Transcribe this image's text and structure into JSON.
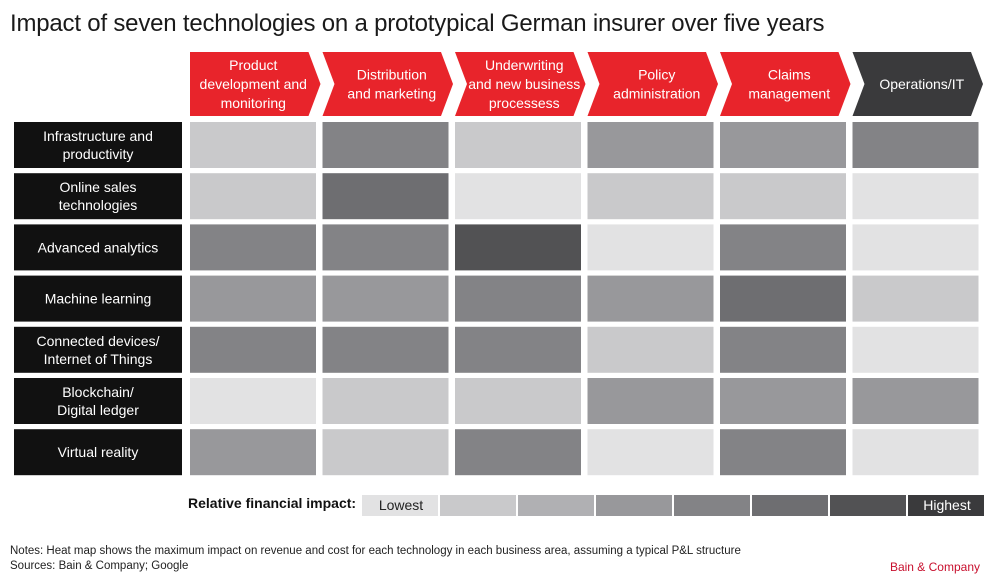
{
  "title": "Impact of seven technologies on a prototypical German insurer over five years",
  "chart_data": {
    "type": "heatmap",
    "columns": [
      {
        "label": [
          "Product",
          "development and",
          "monitoring"
        ],
        "color": "#e8242b"
      },
      {
        "label": [
          "Distribution",
          "and marketing"
        ],
        "color": "#e8242b"
      },
      {
        "label": [
          "Underwriting",
          "and new business",
          "processess"
        ],
        "color": "#e8242b"
      },
      {
        "label": [
          "Policy",
          "administration"
        ],
        "color": "#e8242b"
      },
      {
        "label": [
          "Claims",
          "management"
        ],
        "color": "#e8242b"
      },
      {
        "label": [
          "Operations/IT"
        ],
        "color": "#3a3a3c"
      }
    ],
    "rows": [
      {
        "label": [
          "Infrastructure and",
          "productivity"
        ],
        "values": [
          2,
          5,
          2,
          4,
          4,
          5
        ]
      },
      {
        "label": [
          "Online sales",
          "technologies"
        ],
        "values": [
          2,
          6,
          1,
          2,
          2,
          1
        ]
      },
      {
        "label": [
          "Advanced analytics"
        ],
        "values": [
          5,
          5,
          7,
          1,
          5,
          1
        ]
      },
      {
        "label": [
          "Machine learning"
        ],
        "values": [
          4,
          4,
          5,
          4,
          6,
          2
        ]
      },
      {
        "label": [
          "Connected devices/",
          "Internet of Things"
        ],
        "values": [
          5,
          5,
          5,
          2,
          5,
          1
        ]
      },
      {
        "label": [
          "Blockchain/",
          "Digital ledger"
        ],
        "values": [
          1,
          2,
          2,
          4,
          4,
          4
        ]
      },
      {
        "label": [
          "Virtual reality"
        ],
        "values": [
          4,
          2,
          5,
          1,
          5,
          1
        ]
      }
    ],
    "scale": {
      "min": 1,
      "max": 8,
      "title": "Relative financial impact:",
      "low_label": "Lowest",
      "high_label": "Highest",
      "colors": [
        "#e2e2e3",
        "#c9c9cb",
        "#b0b0b3",
        "#98989b",
        "#838386",
        "#6e6e71",
        "#525254",
        "#3a3a3c"
      ]
    }
  },
  "notes": "Notes: Heat map shows the maximum impact on revenue and cost for each technology in each business area, assuming a typical P&L structure",
  "sources": "Sources: Bain & Company; Google",
  "brand": "Bain & Company"
}
